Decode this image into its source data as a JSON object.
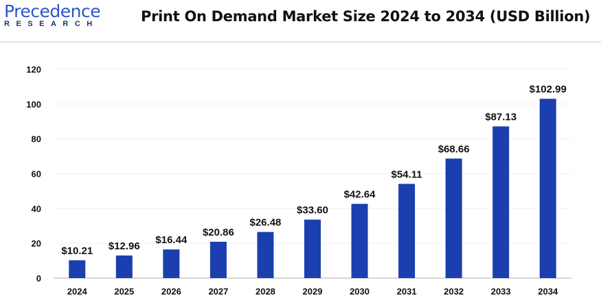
{
  "logo": {
    "line1": "Precedence",
    "line2": "RESEARCH"
  },
  "chart_data": {
    "type": "bar",
    "title": "Print On Demand Market Size 2024 to 2034 (USD Billion)",
    "categories": [
      "2024",
      "2025",
      "2026",
      "2027",
      "2028",
      "2029",
      "2030",
      "2031",
      "2032",
      "2033",
      "2034"
    ],
    "values": [
      10.21,
      12.96,
      16.44,
      20.86,
      26.48,
      33.6,
      42.64,
      54.11,
      68.66,
      87.13,
      102.99
    ],
    "data_labels": [
      "$10.21",
      "$12.96",
      "$16.44",
      "$20.86",
      "$26.48",
      "$33.60",
      "$42.64",
      "$54.11",
      "$68.66",
      "$87.13",
      "$102.99"
    ],
    "yticks": [
      "0",
      "20",
      "40",
      "60",
      "80",
      "100",
      "120"
    ],
    "ylim": [
      0,
      120
    ],
    "xlabel": "",
    "ylabel": "",
    "grid": true,
    "bar_color": "#1b3fae"
  }
}
